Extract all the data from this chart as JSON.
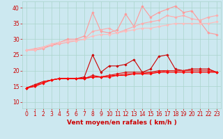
{
  "x": [
    0,
    1,
    2,
    3,
    4,
    5,
    6,
    7,
    8,
    9,
    10,
    11,
    12,
    13,
    14,
    15,
    16,
    17,
    18,
    19,
    20,
    21,
    22,
    23
  ],
  "series": [
    {
      "color": "#ff9999",
      "linewidth": 0.8,
      "marker": "D",
      "markersize": 1.8,
      "values": [
        26.5,
        26.5,
        27.0,
        28.0,
        29.0,
        30.0,
        30.0,
        31.0,
        38.5,
        32.5,
        32.0,
        33.0,
        38.0,
        34.0,
        40.5,
        37.0,
        38.5,
        39.5,
        40.5,
        38.5,
        39.0,
        35.5,
        32.0,
        31.5
      ]
    },
    {
      "color": "#ffaaaa",
      "linewidth": 0.8,
      "marker": "D",
      "markersize": 1.8,
      "values": [
        26.5,
        27.0,
        27.5,
        28.0,
        28.5,
        29.0,
        29.5,
        30.0,
        32.5,
        33.0,
        33.5,
        32.0,
        33.0,
        34.0,
        35.0,
        35.5,
        36.0,
        37.5,
        37.0,
        37.5,
        36.5,
        36.0,
        37.0,
        37.5
      ]
    },
    {
      "color": "#ffbbbb",
      "linewidth": 0.8,
      "marker": "D",
      "markersize": 1.8,
      "values": [
        26.5,
        26.5,
        27.5,
        28.5,
        29.0,
        29.5,
        29.5,
        30.0,
        31.0,
        31.5,
        31.5,
        32.0,
        32.5,
        33.0,
        33.5,
        33.5,
        34.0,
        34.5,
        35.0,
        35.0,
        35.0,
        35.0,
        35.0,
        35.5
      ]
    },
    {
      "color": "#cc0000",
      "linewidth": 0.8,
      "marker": "D",
      "markersize": 1.8,
      "values": [
        14.5,
        15.5,
        16.5,
        17.0,
        17.5,
        17.5,
        17.5,
        18.0,
        25.0,
        19.5,
        21.5,
        21.5,
        22.0,
        23.5,
        19.5,
        20.5,
        24.5,
        25.0,
        20.5,
        20.0,
        20.5,
        20.5,
        20.5,
        19.5
      ]
    },
    {
      "color": "#dd1111",
      "linewidth": 0.8,
      "marker": "D",
      "markersize": 1.8,
      "values": [
        14.5,
        15.5,
        16.5,
        17.0,
        17.5,
        17.5,
        17.5,
        17.5,
        18.5,
        18.0,
        18.5,
        19.0,
        19.5,
        19.5,
        19.5,
        19.5,
        20.0,
        20.0,
        20.0,
        20.0,
        20.5,
        20.5,
        20.5,
        19.5
      ]
    },
    {
      "color": "#ee2222",
      "linewidth": 0.8,
      "marker": "D",
      "markersize": 1.8,
      "values": [
        14.5,
        15.0,
        16.5,
        17.0,
        17.5,
        17.5,
        17.5,
        17.5,
        18.0,
        18.0,
        18.5,
        18.5,
        19.0,
        19.0,
        19.0,
        19.5,
        19.5,
        20.0,
        20.0,
        20.0,
        20.0,
        20.0,
        20.0,
        19.5
      ]
    },
    {
      "color": "#ff0000",
      "linewidth": 0.9,
      "marker": "D",
      "markersize": 1.8,
      "values": [
        14.5,
        15.0,
        16.0,
        17.0,
        17.5,
        17.5,
        17.5,
        17.5,
        18.0,
        18.0,
        18.0,
        18.5,
        18.5,
        19.0,
        19.0,
        19.0,
        19.5,
        19.5,
        19.5,
        19.5,
        19.5,
        19.5,
        19.5,
        19.5
      ]
    }
  ],
  "xlabel": "Vent moyen/en rafales ( km/h )",
  "ylim": [
    8,
    42
  ],
  "xlim": [
    -0.5,
    23.5
  ],
  "yticks": [
    10,
    15,
    20,
    25,
    30,
    35,
    40
  ],
  "xticks": [
    0,
    1,
    2,
    3,
    4,
    5,
    6,
    7,
    8,
    9,
    10,
    11,
    12,
    13,
    14,
    15,
    16,
    17,
    18,
    19,
    20,
    21,
    22,
    23
  ],
  "bg_color": "#cce8f0",
  "grid_color": "#aad4cc",
  "tick_color": "#cc0000",
  "label_color": "#cc0000",
  "axis_font_size": 5.5,
  "xlabel_font_size": 6.5
}
